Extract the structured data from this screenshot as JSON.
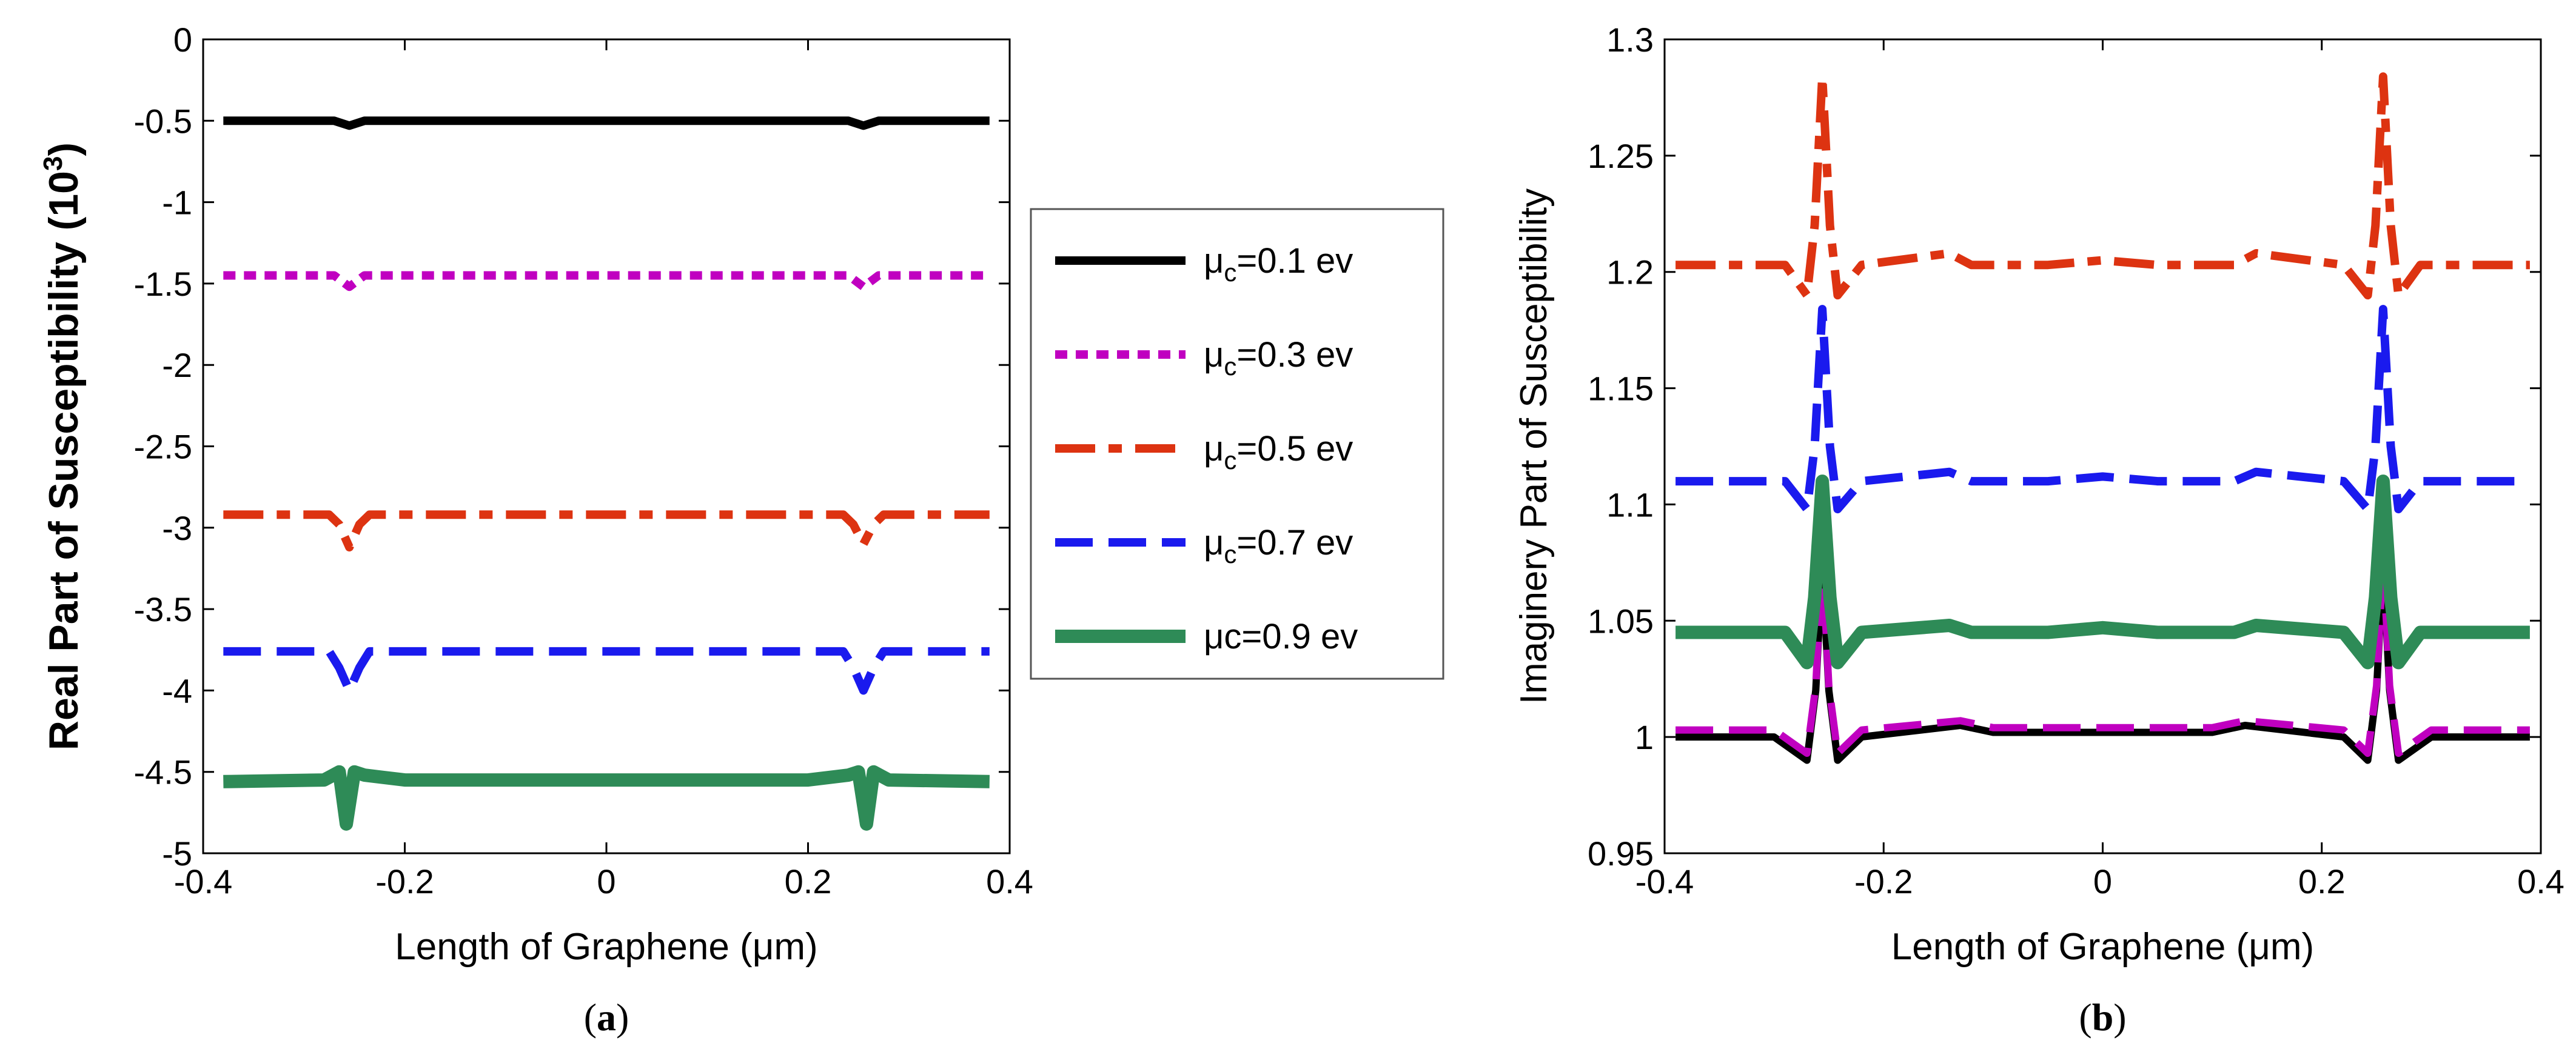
{
  "chart_data": [
    {
      "type": "line",
      "panel": "a",
      "caption_open": "(",
      "caption_letter": "a",
      "caption_close": ")",
      "ylabel": "Real Part of Susceptibility (10",
      "ylabel_sup": "3",
      "ylabel_close": ")",
      "xlabel": "Length of Graphene (μm)",
      "xlim": [
        -0.4,
        0.4
      ],
      "ylim": [
        -5,
        0
      ],
      "xticks": [
        -0.4,
        -0.2,
        0,
        0.2,
        0.4
      ],
      "xtick_labels": [
        "-0.4",
        "-0.2",
        "0",
        "0.2",
        "0.4"
      ],
      "yticks": [
        0,
        -0.5,
        -1,
        -1.5,
        -2,
        -2.5,
        -3,
        -3.5,
        -4,
        -4.5,
        -5
      ],
      "ytick_labels": [
        "0",
        "-0.5",
        "-1",
        "-1.5",
        "-2",
        "-2.5",
        "-3",
        "-3.5",
        "-4",
        "-4.5",
        "-5"
      ],
      "series": [
        {
          "name": "μc=0.1 ev",
          "color": "#000000",
          "dash": "solid",
          "width": 14,
          "x": [
            -0.38,
            -0.27,
            -0.255,
            -0.24,
            0.24,
            0.255,
            0.27,
            0.38
          ],
          "y": [
            -0.5,
            -0.5,
            -0.53,
            -0.5,
            -0.5,
            -0.53,
            -0.5,
            -0.5
          ]
        },
        {
          "name": "μc=0.3 ev",
          "color": "#c000c0",
          "dash": "dot",
          "width": 14,
          "x": [
            -0.38,
            -0.27,
            -0.255,
            -0.24,
            0.24,
            0.255,
            0.27,
            0.38
          ],
          "y": [
            -1.45,
            -1.45,
            -1.52,
            -1.45,
            -1.45,
            -1.52,
            -1.45,
            -1.45
          ]
        },
        {
          "name": "μc=0.5 ev",
          "color": "#dd3311",
          "dash": "dashdot",
          "width": 14,
          "x": [
            -0.38,
            -0.275,
            -0.265,
            -0.255,
            -0.245,
            -0.235,
            0.235,
            0.245,
            0.255,
            0.265,
            0.275,
            0.38
          ],
          "y": [
            -2.92,
            -2.92,
            -2.98,
            -3.12,
            -2.98,
            -2.92,
            -2.92,
            -2.98,
            -3.1,
            -2.98,
            -2.92,
            -2.92
          ]
        },
        {
          "name": "μc=0.7 ev",
          "color": "#1a1aee",
          "dash": "dash",
          "width": 14,
          "x": [
            -0.38,
            -0.275,
            -0.265,
            -0.255,
            -0.245,
            -0.235,
            0.235,
            0.245,
            0.255,
            0.265,
            0.275,
            0.38
          ],
          "y": [
            -3.76,
            -3.76,
            -3.86,
            -4.0,
            -3.86,
            -3.76,
            -3.76,
            -3.86,
            -4.0,
            -3.86,
            -3.76,
            -3.76
          ]
        },
        {
          "name": "μc=0.9 ev",
          "color": "#2e8b57",
          "dash": "solid",
          "width": 22,
          "x": [
            -0.38,
            -0.28,
            -0.265,
            -0.258,
            -0.25,
            -0.24,
            -0.2,
            0.2,
            0.24,
            0.25,
            0.258,
            0.265,
            0.28,
            0.38
          ],
          "y": [
            -4.56,
            -4.55,
            -4.5,
            -4.82,
            -4.5,
            -4.52,
            -4.55,
            -4.55,
            -4.52,
            -4.5,
            -4.82,
            -4.5,
            -4.55,
            -4.56
          ]
        }
      ],
      "legend": "outside-right"
    },
    {
      "type": "line",
      "panel": "b",
      "caption_open": "(",
      "caption_letter": "b",
      "caption_close": ")",
      "ylabel": "Imaginery Part of Susceptibility",
      "xlabel": "Length of Graphene (μm)",
      "xlim": [
        -0.4,
        0.4
      ],
      "ylim": [
        0.95,
        1.3
      ],
      "xticks": [
        -0.4,
        -0.2,
        0,
        0.2,
        0.4
      ],
      "xtick_labels": [
        "-0.4",
        "-0.2",
        "0",
        "0.2",
        "0.4"
      ],
      "yticks": [
        0.95,
        1,
        1.05,
        1.1,
        1.15,
        1.2,
        1.25,
        1.3
      ],
      "ytick_labels": [
        "0.95",
        "1",
        "1.05",
        "1.1",
        "1.15",
        "1.2",
        "1.25",
        "1.3"
      ],
      "series": [
        {
          "name": "μc=0.1 ev",
          "color": "#000000",
          "dash": "solid",
          "width": 12,
          "x": [
            -0.39,
            -0.3,
            -0.27,
            -0.262,
            -0.256,
            -0.25,
            -0.242,
            -0.22,
            -0.13,
            -0.1,
            0.1,
            0.13,
            0.22,
            0.242,
            0.25,
            0.256,
            0.262,
            0.27,
            0.3,
            0.39
          ],
          "y": [
            1.0,
            1.0,
            0.99,
            1.02,
            1.075,
            1.02,
            0.99,
            1.0,
            1.005,
            1.002,
            1.002,
            1.005,
            1.0,
            0.99,
            1.02,
            1.075,
            1.02,
            0.99,
            1.0,
            1.0
          ]
        },
        {
          "name": "μc=0.3 ev",
          "color": "#c000c0",
          "dash": "dash",
          "width": 12,
          "x": [
            -0.39,
            -0.3,
            -0.27,
            -0.262,
            -0.256,
            -0.25,
            -0.242,
            -0.22,
            -0.13,
            -0.1,
            0.1,
            0.13,
            0.22,
            0.242,
            0.25,
            0.256,
            0.262,
            0.27,
            0.3,
            0.39
          ],
          "y": [
            1.003,
            1.003,
            0.993,
            1.022,
            1.077,
            1.022,
            0.993,
            1.003,
            1.007,
            1.004,
            1.004,
            1.007,
            1.003,
            0.993,
            1.022,
            1.077,
            1.022,
            0.993,
            1.003,
            1.003
          ]
        },
        {
          "name": "μc=0.5 ev",
          "color": "#dd3311",
          "dash": "dashdot",
          "width": 14,
          "x": [
            -0.39,
            -0.29,
            -0.27,
            -0.263,
            -0.256,
            -0.249,
            -0.242,
            -0.22,
            -0.14,
            -0.12,
            -0.05,
            0.0,
            0.05,
            0.12,
            0.14,
            0.22,
            0.242,
            0.249,
            0.256,
            0.263,
            0.27,
            0.29,
            0.39
          ],
          "y": [
            1.203,
            1.203,
            1.19,
            1.22,
            1.284,
            1.22,
            1.19,
            1.203,
            1.208,
            1.203,
            1.203,
            1.205,
            1.203,
            1.203,
            1.208,
            1.203,
            1.19,
            1.22,
            1.284,
            1.22,
            1.19,
            1.203,
            1.203
          ]
        },
        {
          "name": "μc=0.7 ev",
          "color": "#1a1aee",
          "dash": "dash",
          "width": 14,
          "x": [
            -0.39,
            -0.29,
            -0.27,
            -0.263,
            -0.256,
            -0.249,
            -0.242,
            -0.22,
            -0.14,
            -0.12,
            -0.05,
            0.0,
            0.05,
            0.12,
            0.14,
            0.22,
            0.242,
            0.249,
            0.256,
            0.263,
            0.27,
            0.29,
            0.39
          ],
          "y": [
            1.11,
            1.11,
            1.098,
            1.125,
            1.184,
            1.125,
            1.098,
            1.11,
            1.114,
            1.11,
            1.11,
            1.112,
            1.11,
            1.11,
            1.114,
            1.11,
            1.098,
            1.125,
            1.184,
            1.125,
            1.098,
            1.11,
            1.11
          ]
        },
        {
          "name": "μc=0.9 ev",
          "color": "#2e8b57",
          "dash": "solid",
          "width": 22,
          "x": [
            -0.39,
            -0.29,
            -0.27,
            -0.263,
            -0.256,
            -0.249,
            -0.242,
            -0.22,
            -0.14,
            -0.12,
            -0.05,
            0.0,
            0.05,
            0.12,
            0.14,
            0.22,
            0.242,
            0.249,
            0.256,
            0.263,
            0.27,
            0.29,
            0.39
          ],
          "y": [
            1.045,
            1.045,
            1.032,
            1.06,
            1.11,
            1.06,
            1.032,
            1.045,
            1.048,
            1.045,
            1.045,
            1.047,
            1.045,
            1.045,
            1.048,
            1.045,
            1.032,
            1.06,
            1.11,
            1.06,
            1.032,
            1.045,
            1.045
          ]
        }
      ]
    }
  ],
  "legend": {
    "entries": [
      {
        "prefix": "μ",
        "sub": "c",
        "text": "=0.1 ev",
        "color": "#000000",
        "dash": "solid",
        "width": 14
      },
      {
        "prefix": "μ",
        "sub": "c",
        "text": "=0.3 ev",
        "color": "#c000c0",
        "dash": "dot",
        "width": 14
      },
      {
        "prefix": "μ",
        "sub": "c",
        "text": "=0.5 ev",
        "color": "#dd3311",
        "dash": "dashdot",
        "width": 14
      },
      {
        "prefix": "μ",
        "sub": "c",
        "text": "=0.7 ev",
        "color": "#1a1aee",
        "dash": "dash",
        "width": 14
      },
      {
        "prefix": "μc=0.9 ev",
        "sub": "",
        "text": "",
        "color": "#2e8b57",
        "dash": "solid",
        "width": 22
      }
    ]
  }
}
